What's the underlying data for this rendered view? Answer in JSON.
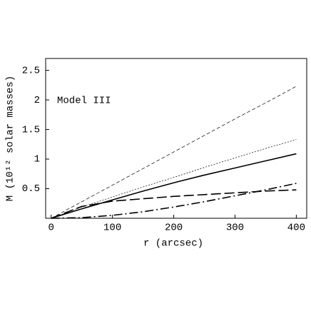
{
  "chart_data": {
    "type": "line",
    "annotation": "Model III",
    "x_label": "r (arcsec)",
    "y_label": "M (10¹² solar masses)",
    "x": [
      0,
      50,
      100,
      150,
      200,
      250,
      300,
      350,
      400
    ],
    "series": [
      {
        "color": "#000000",
        "style": "dashed",
        "values": [
          0,
          0.28,
          0.56,
          0.84,
          1.12,
          1.4,
          1.68,
          1.95,
          2.23
        ]
      },
      {
        "color": "#000000",
        "style": "dotted",
        "values": [
          0,
          0.19,
          0.36,
          0.53,
          0.69,
          0.86,
          1.02,
          1.18,
          1.33
        ]
      },
      {
        "color": "#000000",
        "style": "solid",
        "values": [
          0,
          0.16,
          0.31,
          0.46,
          0.6,
          0.73,
          0.85,
          0.97,
          1.09
        ]
      },
      {
        "color": "#000000",
        "style": "longdash",
        "values": [
          0,
          0.2,
          0.29,
          0.33,
          0.37,
          0.4,
          0.43,
          0.46,
          0.48
        ]
      },
      {
        "color": "#000000",
        "style": "dashdot",
        "values": [
          0,
          0.01,
          0.05,
          0.11,
          0.19,
          0.28,
          0.38,
          0.48,
          0.59
        ]
      }
    ],
    "xlim": [
      -9,
      417
    ],
    "ylim": [
      0,
      2.7
    ],
    "xticks": [
      0,
      100,
      200,
      300,
      400
    ],
    "yticks": [
      0.5,
      1,
      1.5,
      2,
      2.5
    ]
  }
}
